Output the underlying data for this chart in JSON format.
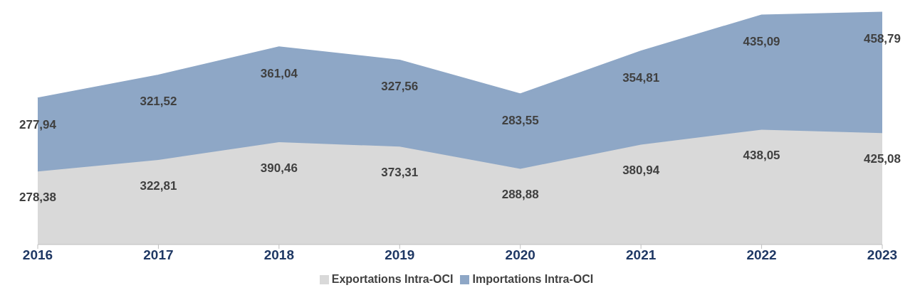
{
  "chart_data": {
    "type": "area",
    "stacked": true,
    "categories": [
      "2016",
      "2017",
      "2018",
      "2019",
      "2020",
      "2021",
      "2022",
      "2023"
    ],
    "series": [
      {
        "name": "Exportations Intra-OCI",
        "color": "#d9d9d9",
        "values": [
          278.38,
          322.81,
          390.46,
          373.31,
          288.88,
          380.94,
          438.05,
          425.08
        ],
        "value_labels": [
          "278,38",
          "322,81",
          "390,46",
          "373,31",
          "288,88",
          "380,94",
          "438,05",
          "425,08"
        ]
      },
      {
        "name": "Importations Intra-OCI",
        "color": "#8ea7c6",
        "values": [
          277.94,
          321.52,
          361.04,
          327.56,
          283.55,
          354.81,
          435.09,
          458.79
        ],
        "value_labels": [
          "277,94",
          "321,52",
          "361,04",
          "327,56",
          "283,55",
          "354,81",
          "435,09",
          "458,79"
        ]
      }
    ],
    "legend": "bottom"
  }
}
